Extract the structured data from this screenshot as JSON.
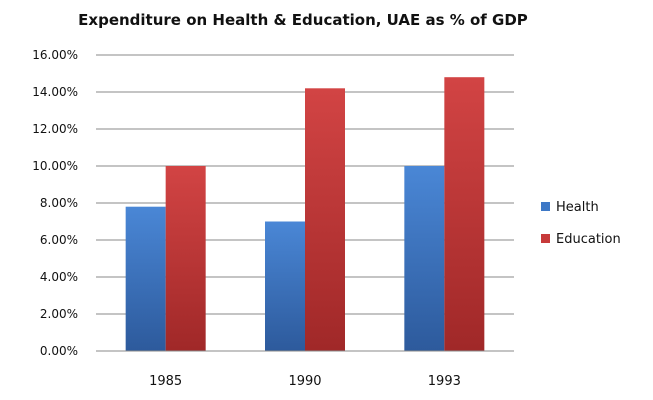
{
  "chart_data": {
    "type": "bar",
    "title": "Expenditure on Health & Education, UAE as % of GDP",
    "xlabel": "",
    "ylabel": "",
    "categories": [
      "1985",
      "1990",
      "1993"
    ],
    "series": [
      {
        "name": "Health",
        "values": [
          7.8,
          7.0,
          10.0
        ],
        "color": "#3d78c6"
      },
      {
        "name": "Education",
        "values": [
          10.0,
          14.2,
          14.8
        ],
        "color": "#c73a3a"
      }
    ],
    "ylim": [
      0,
      16
    ],
    "yticks": [
      "0.00%",
      "2.00%",
      "4.00%",
      "6.00%",
      "8.00%",
      "10.00%",
      "12.00%",
      "14.00%",
      "16.00%"
    ],
    "grid": true,
    "legend": "right"
  }
}
